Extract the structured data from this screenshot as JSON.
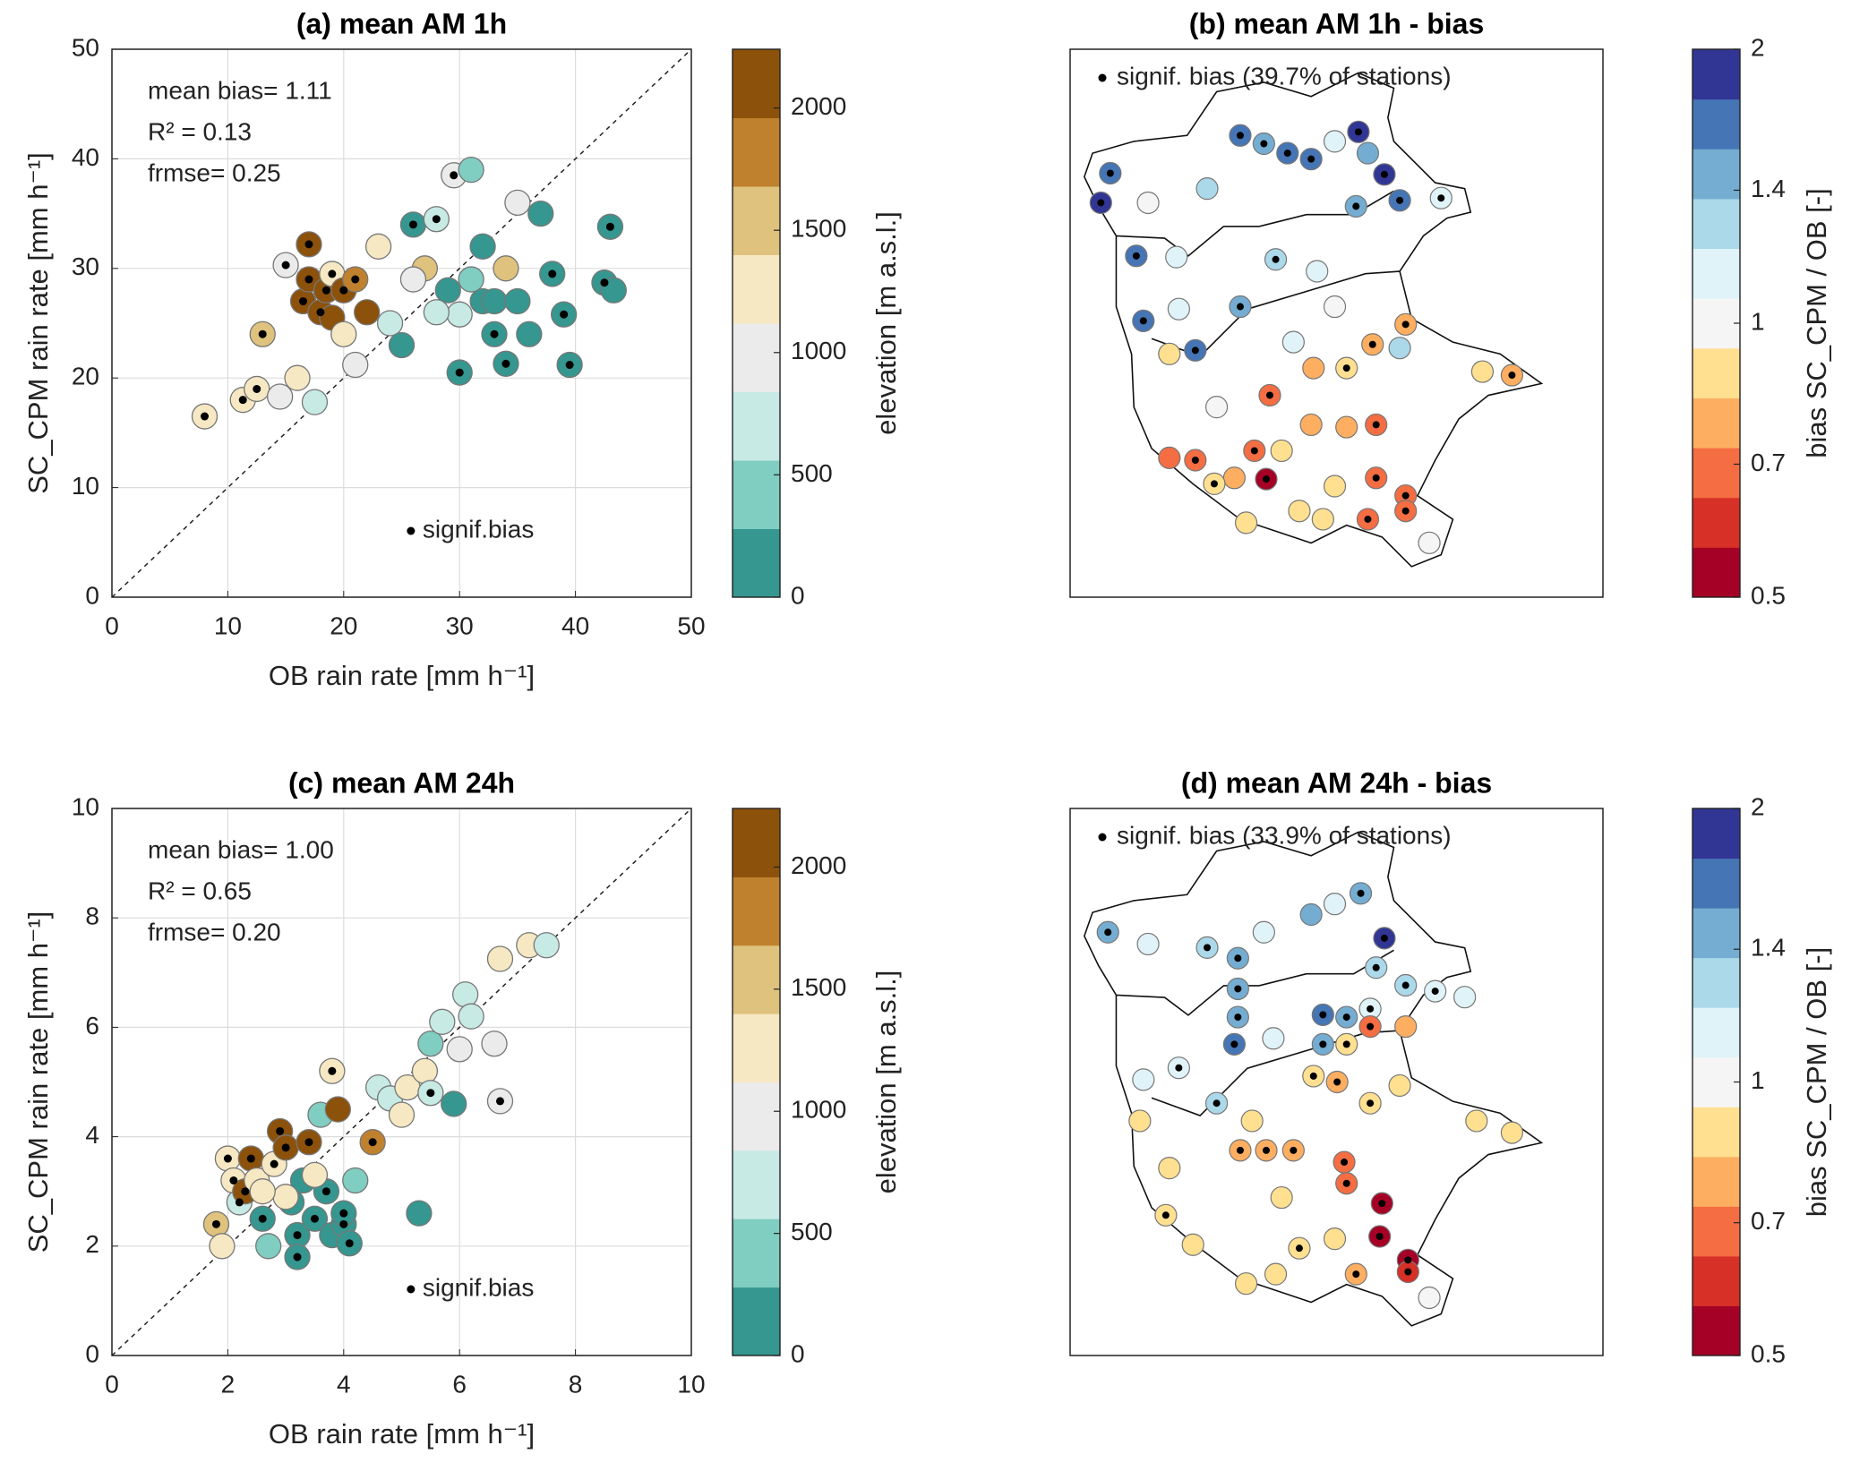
{
  "chart_data": [
    {
      "type": "scatter",
      "title": "(a) mean AM 1h",
      "x_label": "OB rain rate [mm h⁻¹]",
      "y_label": "SC_CPM rain rate [mm h⁻¹]",
      "xlim": [
        0,
        50
      ],
      "ylim": [
        0,
        50
      ],
      "xticks": [
        0,
        10,
        20,
        30,
        40,
        50
      ],
      "yticks": [
        0,
        10,
        20,
        30,
        40,
        50
      ],
      "grid": true,
      "annotations": [
        "mean bias= 1.11",
        "R² = 0.13",
        "frmse= 0.25"
      ],
      "signif_label": "signif.bias",
      "colorbar": {
        "label": "elevation [m a.s.l.]",
        "lim": [
          0,
          2240
        ],
        "ticks": [
          0,
          500,
          1000,
          1500,
          2000
        ],
        "log": false,
        "colors": [
          "#35978f",
          "#80cdc1",
          "#c7eae5",
          "#ebebeb",
          "#f6e8c3",
          "#dfc27d",
          "#bf812d",
          "#8c510a"
        ]
      },
      "points": {
        "x": [
          8,
          11.3,
          12.5,
          13,
          14.5,
          15,
          16,
          16.5,
          17,
          17.5,
          17,
          18,
          18.5,
          19,
          19,
          20,
          20,
          21,
          21,
          22,
          23,
          24,
          25,
          26,
          27,
          28,
          29,
          29.5,
          30,
          30,
          31,
          32,
          32,
          33,
          34,
          34,
          35,
          36,
          37,
          38,
          39,
          39.5,
          42.5,
          43,
          43.3,
          33,
          35,
          31,
          28,
          26
        ],
        "y": [
          16.5,
          18,
          19,
          24,
          18.3,
          30.3,
          20,
          27,
          32.2,
          17.8,
          29,
          26,
          28,
          25.5,
          29.5,
          28,
          24,
          21.2,
          29,
          26,
          32,
          25,
          23,
          34,
          30,
          34.5,
          28,
          38.5,
          25.8,
          20.5,
          39,
          32,
          27,
          24,
          21.3,
          30,
          36,
          24,
          35,
          29.5,
          25.8,
          21.2,
          28.7,
          33.8,
          28,
          27,
          27,
          29,
          26,
          29
        ],
        "elevation": [
          1300,
          1300,
          1300,
          1400,
          900,
          1100,
          1300,
          2100,
          2100,
          700,
          2000,
          2100,
          2000,
          2100,
          1200,
          2000,
          1300,
          1000,
          1900,
          2100,
          1300,
          700,
          200,
          100,
          1500,
          700,
          200,
          900,
          800,
          100,
          300,
          200,
          100,
          100,
          100,
          1400,
          1100,
          200,
          200,
          100,
          100,
          100,
          100,
          100,
          100,
          200,
          200,
          300,
          700,
          1100
        ],
        "signif": [
          true,
          true,
          true,
          true,
          false,
          true,
          false,
          true,
          true,
          false,
          true,
          true,
          true,
          false,
          true,
          true,
          false,
          false,
          true,
          false,
          false,
          false,
          false,
          true,
          false,
          true,
          false,
          true,
          false,
          true,
          false,
          false,
          false,
          true,
          true,
          false,
          false,
          false,
          false,
          true,
          true,
          true,
          true,
          true,
          false,
          false,
          false,
          false,
          false,
          false
        ]
      }
    },
    {
      "type": "map",
      "title": "(b) mean AM 1h - bias",
      "signif_label": "signif. bias (39.7% of stations)",
      "xlim": [
        0,
        451
      ],
      "ylim": [
        464,
        0
      ],
      "colorbar": {
        "label": "bias SC_CPM / OB [-]",
        "lim": [
          0.5,
          2
        ],
        "ticks": [
          0.5,
          0.7,
          1,
          1.4,
          2
        ],
        "log": true,
        "colors": [
          "#a50026",
          "#d73027",
          "#f46d43",
          "#fdae61",
          "#fee090",
          "#f5f5f5",
          "#e0f3f8",
          "#abd9e9",
          "#74add1",
          "#4575b4",
          "#313695"
        ]
      },
      "stations": {
        "x": [
          26,
          34,
          56,
          62,
          66,
          90,
          92,
          116,
          106,
          144,
          164,
          184,
          204,
          224,
          244,
          252,
          266,
          242,
          279,
          314,
          174,
          144,
          209,
          224,
          284,
          256,
          279,
          206,
          234,
          374,
          349,
          84,
          106,
          139,
          166,
          156,
          179,
          204,
          234,
          259,
          259,
          284,
          284,
          252,
          194,
          149,
          122,
          304,
          169,
          124,
          84,
          214,
          224,
          189
        ],
        "y": [
          130,
          105,
          175,
          230,
          130,
          176,
          220,
          118,
          255,
          73,
          80,
          88,
          93,
          78,
          70,
          88,
          106,
          133,
          128,
          126,
          178,
          218,
          188,
          218,
          233,
          250,
          253,
          270,
          270,
          276,
          273,
          346,
          348,
          363,
          364,
          340,
          340,
          318,
          320,
          318,
          363,
          378,
          391,
          398,
          391,
          401,
          368,
          418,
          293,
          303,
          258,
          398,
          370,
          248
        ],
        "bias": [
          1.9,
          1.6,
          1.6,
          1.6,
          1.0,
          1.2,
          1.1,
          1.3,
          1.6,
          1.6,
          1.5,
          1.6,
          1.6,
          1.2,
          1.9,
          1.4,
          1.8,
          1.5,
          1.6,
          1.1,
          1.3,
          1.5,
          1.1,
          1.0,
          0.8,
          0.8,
          1.3,
          0.8,
          0.85,
          0.8,
          0.9,
          0.7,
          0.7,
          0.8,
          0.5,
          0.7,
          0.85,
          0.8,
          0.75,
          0.7,
          0.7,
          0.7,
          0.7,
          0.7,
          0.85,
          0.85,
          0.9,
          1.0,
          0.7,
          1.0,
          0.9,
          0.9,
          0.85,
          1.1
        ],
        "signif": [
          true,
          true,
          true,
          true,
          false,
          false,
          false,
          false,
          true,
          true,
          true,
          true,
          true,
          false,
          true,
          false,
          true,
          true,
          true,
          true,
          true,
          true,
          false,
          false,
          true,
          true,
          false,
          false,
          true,
          true,
          false,
          false,
          true,
          false,
          true,
          true,
          false,
          false,
          false,
          true,
          true,
          true,
          true,
          true,
          false,
          false,
          true,
          false,
          true,
          false,
          false,
          false,
          false,
          false
        ]
      }
    },
    {
      "type": "scatter",
      "title": "(c) mean AM 24h",
      "x_label": "OB rain rate [mm h⁻¹]",
      "y_label": "SC_CPM rain rate [mm h⁻¹]",
      "xlim": [
        0,
        10
      ],
      "ylim": [
        0,
        10
      ],
      "xticks": [
        0,
        2,
        4,
        6,
        8,
        10
      ],
      "yticks": [
        0,
        2,
        4,
        6,
        8,
        10
      ],
      "grid": true,
      "annotations": [
        "mean bias= 1.00",
        "R² = 0.65",
        "frmse= 0.20"
      ],
      "signif_label": "signif.bias",
      "colorbar": {
        "label": "elevation [m a.s.l.]",
        "lim": [
          0,
          2240
        ],
        "ticks": [
          0,
          500,
          1000,
          1500,
          2000
        ],
        "log": false,
        "colors": [
          "#35978f",
          "#80cdc1",
          "#c7eae5",
          "#ebebeb",
          "#f6e8c3",
          "#dfc27d",
          "#bf812d",
          "#8c510a"
        ]
      },
      "points": {
        "x": [
          1.8,
          1.9,
          2,
          2.1,
          2.2,
          2.3,
          2.4,
          2.5,
          2.6,
          2.7,
          2.8,
          2.9,
          3,
          3.1,
          3.2,
          3.2,
          3.3,
          3.4,
          3.5,
          3.6,
          3.7,
          3.8,
          3.8,
          3.9,
          4,
          4.1,
          4,
          4.2,
          4.5,
          4.6,
          4.8,
          5,
          5.1,
          5.3,
          5.4,
          5.5,
          5.5,
          5.7,
          5.9,
          6,
          6.1,
          6.2,
          6.6,
          6.7,
          6.7,
          7.2,
          7.5,
          3,
          2.6,
          3.5
        ],
        "y": [
          2.4,
          2.0,
          3.6,
          3.2,
          2.8,
          3.0,
          3.6,
          3.2,
          2.5,
          2.0,
          3.5,
          4.1,
          3.8,
          2.8,
          2.2,
          1.8,
          3.2,
          3.9,
          2.5,
          4.4,
          3.0,
          2.2,
          5.2,
          4.5,
          2.4,
          2.05,
          2.6,
          3.2,
          3.9,
          4.9,
          4.7,
          4.4,
          4.9,
          2.6,
          5.2,
          5.7,
          4.8,
          6.1,
          4.6,
          5.6,
          6.6,
          6.2,
          5.7,
          4.65,
          7.25,
          7.5,
          7.5,
          2.9,
          3.0,
          3.3
        ],
        "elevation": [
          1400,
          1300,
          1200,
          1200,
          600,
          2100,
          2100,
          1300,
          200,
          300,
          1300,
          2100,
          2100,
          200,
          100,
          100,
          200,
          2100,
          200,
          300,
          200,
          100,
          1300,
          2100,
          100,
          100,
          100,
          300,
          1800,
          800,
          700,
          1200,
          1200,
          100,
          1300,
          500,
          800,
          700,
          100,
          1000,
          700,
          700,
          1000,
          1000,
          1300,
          1300,
          800,
          1300,
          1300,
          1300
        ],
        "signif": [
          true,
          false,
          true,
          true,
          true,
          true,
          true,
          false,
          true,
          false,
          true,
          true,
          true,
          false,
          true,
          true,
          false,
          true,
          true,
          false,
          true,
          false,
          true,
          false,
          true,
          true,
          true,
          false,
          true,
          false,
          false,
          false,
          false,
          false,
          false,
          false,
          true,
          false,
          false,
          false,
          false,
          false,
          false,
          true,
          false,
          false,
          false,
          false,
          false,
          false
        ]
      }
    },
    {
      "type": "map",
      "title": "(d) mean AM 24h - bias",
      "signif_label": "signif. bias (33.9% of stations)",
      "xlim": [
        0,
        451
      ],
      "ylim": [
        464,
        0
      ],
      "colorbar": {
        "label": "bias SC_CPM / OB [-]",
        "lim": [
          0.5,
          2
        ],
        "ticks": [
          0.5,
          0.7,
          1,
          1.4,
          2
        ],
        "log": true,
        "colors": [
          "#a50026",
          "#d73027",
          "#f46d43",
          "#fdae61",
          "#fee090",
          "#f5f5f5",
          "#e0f3f8",
          "#abd9e9",
          "#74add1",
          "#4575b4",
          "#313695"
        ]
      },
      "stations": {
        "x": [
          32,
          66,
          116,
          142,
          164,
          204,
          224,
          246,
          266,
          259,
          284,
          309,
          334,
          142,
          142,
          139,
          214,
          234,
          254,
          214,
          92,
          62,
          124,
          172,
          234,
          254,
          284,
          206,
          226,
          279,
          374,
          344,
          254,
          59,
          84,
          144,
          166,
          189,
          232,
          234,
          264,
          262,
          286,
          286,
          242,
          179,
          104,
          81,
          194,
          174,
          149,
          304,
          224,
          154
        ],
        "y": [
          105,
          115,
          118,
          127,
          105,
          90,
          81,
          72,
          110,
          135,
          150,
          155,
          160,
          153,
          177,
          200,
          175,
          177,
          170,
          200,
          220,
          230,
          250,
          195,
          200,
          185,
          185,
          227,
          232,
          235,
          275,
          265,
          250,
          265,
          305,
          290,
          290,
          290,
          300,
          318,
          335,
          363,
          383,
          393,
          395,
          330,
          370,
          345,
          373,
          395,
          403,
          415,
          365,
          265
        ],
        "bias": [
          1.5,
          1.2,
          1.3,
          1.5,
          1.2,
          1.5,
          1.2,
          1.4,
          1.8,
          1.3,
          1.3,
          1.2,
          1.1,
          1.5,
          1.4,
          1.6,
          1.6,
          1.4,
          1.2,
          1.5,
          1.2,
          1.1,
          1.3,
          1.1,
          0.9,
          0.7,
          0.8,
          0.9,
          0.8,
          0.85,
          0.9,
          0.9,
          0.9,
          0.9,
          0.9,
          0.8,
          0.8,
          0.8,
          0.7,
          0.7,
          0.5,
          0.5,
          0.5,
          0.6,
          0.8,
          0.9,
          0.9,
          0.9,
          0.85,
          0.85,
          0.85,
          1.0,
          0.9,
          0.9
        ],
        "signif": [
          true,
          false,
          true,
          true,
          false,
          false,
          false,
          true,
          true,
          true,
          true,
          true,
          false,
          true,
          true,
          true,
          true,
          true,
          true,
          true,
          true,
          false,
          true,
          false,
          true,
          true,
          false,
          true,
          true,
          false,
          false,
          false,
          true,
          false,
          false,
          true,
          true,
          true,
          true,
          true,
          true,
          true,
          true,
          true,
          true,
          false,
          false,
          true,
          true,
          false,
          false,
          false,
          false,
          false
        ]
      }
    }
  ]
}
